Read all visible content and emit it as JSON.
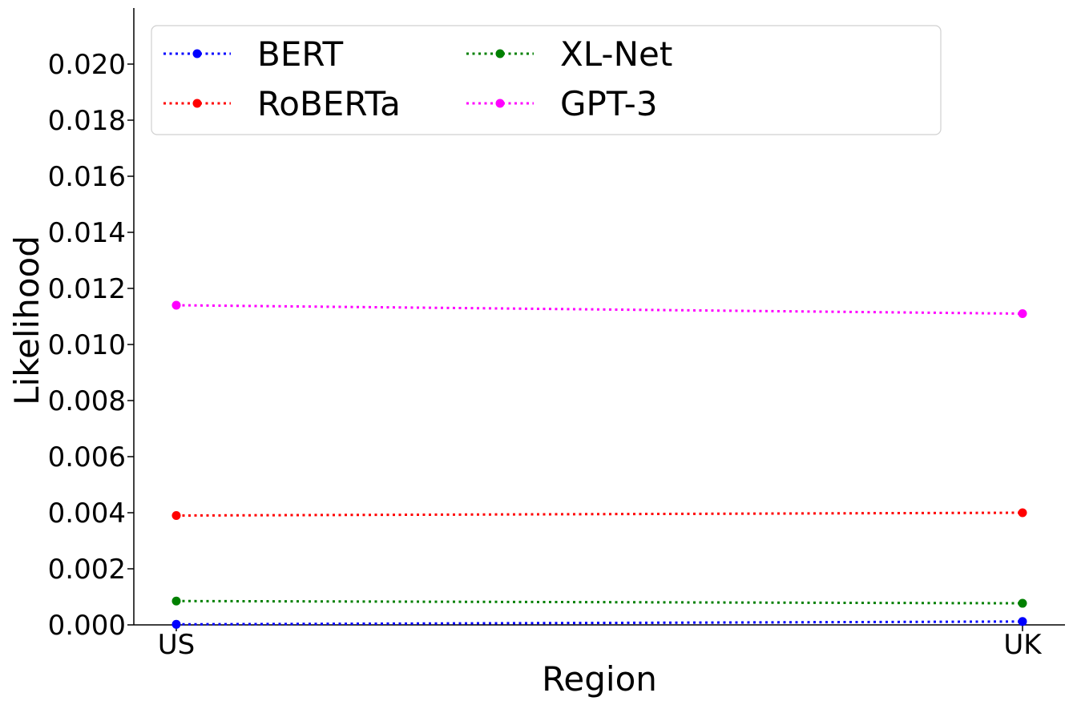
{
  "chart_data": {
    "type": "line",
    "title": "",
    "xlabel": "Region",
    "ylabel": "Likelihood",
    "categories": [
      "US",
      "UK"
    ],
    "ylim": [
      0,
      0.022
    ],
    "yticks": [
      "0.000",
      "0.002",
      "0.004",
      "0.006",
      "0.008",
      "0.010",
      "0.012",
      "0.014",
      "0.016",
      "0.018",
      "0.020"
    ],
    "grid": false,
    "legend_position": "top",
    "line_style": "dotted",
    "series": [
      {
        "name": "BERT",
        "color": "#0000ff",
        "values": [
          2e-05,
          0.00012
        ]
      },
      {
        "name": "RoBERTa",
        "color": "#ff0000",
        "values": [
          0.0039,
          0.004
        ]
      },
      {
        "name": "XL-Net",
        "color": "#008000",
        "values": [
          0.00085,
          0.00077
        ]
      },
      {
        "name": "GPT-3",
        "color": "#ff00ff",
        "values": [
          0.0114,
          0.0111
        ]
      }
    ]
  }
}
